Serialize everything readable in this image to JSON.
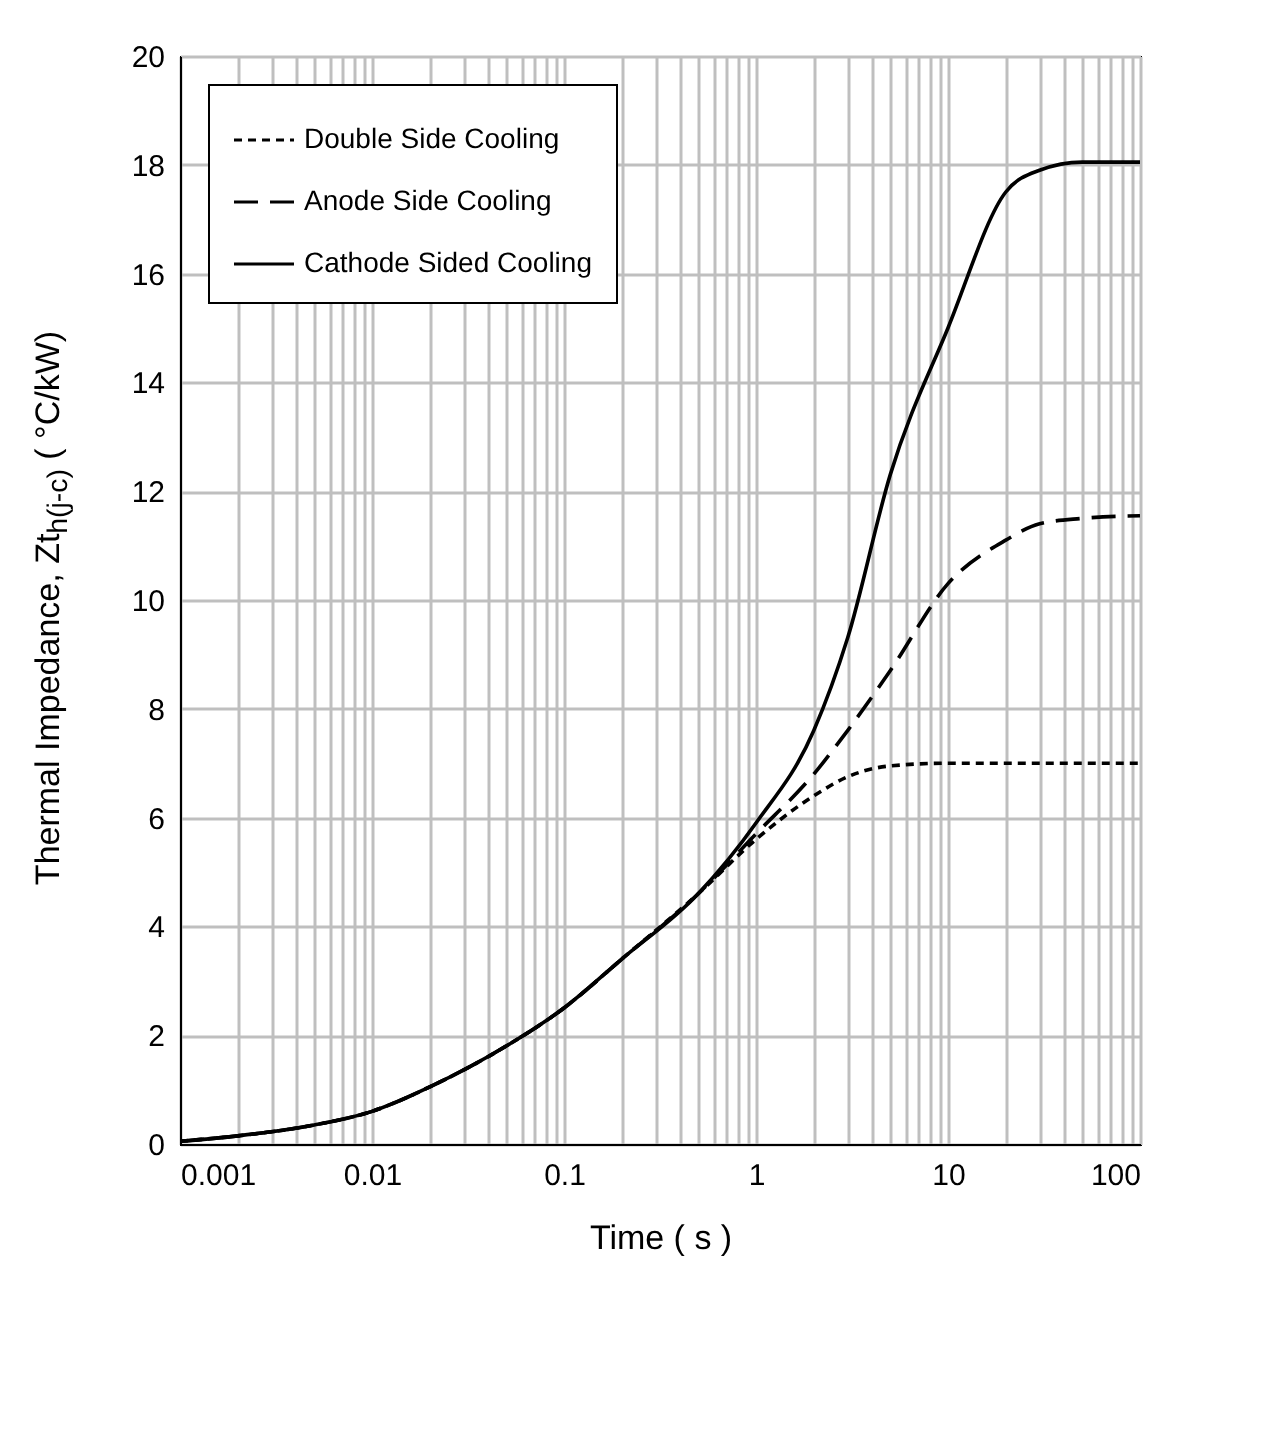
{
  "chart_data": {
    "type": "line",
    "xlabel": "Time ( s )",
    "ylabel": "Thermal Impedance, Zt$_{h(j-c)}$ ( °C/kW)",
    "log": "x",
    "grid": true,
    "legend": "top left",
    "xlim": [
      0.001,
      100
    ],
    "ylim": [
      0,
      20
    ],
    "yticks": [
      0,
      2,
      4,
      6,
      8,
      10,
      12,
      14,
      16,
      18,
      20
    ],
    "xticks": [
      0.001,
      {
        "value": 0.002,
        "label": null
      },
      {
        "value": 0.003,
        "label": null
      },
      {
        "value": 0.004,
        "label": null
      },
      {
        "value": 0.005,
        "label": null
      },
      {
        "value": 0.006,
        "label": null
      },
      {
        "value": 0.007,
        "label": null
      },
      {
        "value": 0.008,
        "label": null
      },
      {
        "value": 0.009,
        "label": null
      },
      0.01,
      {
        "value": 0.02,
        "label": null
      },
      {
        "value": 0.03,
        "label": null
      },
      {
        "value": 0.04,
        "label": null
      },
      {
        "value": 0.05,
        "label": null
      },
      {
        "value": 0.06,
        "label": null
      },
      {
        "value": 0.07,
        "label": null
      },
      {
        "value": 0.08,
        "label": null
      },
      {
        "value": 0.09,
        "label": null
      },
      0.1,
      {
        "value": 0.2,
        "label": null
      },
      {
        "value": 0.3,
        "label": null
      },
      {
        "value": 0.4,
        "label": null
      },
      {
        "value": 0.5,
        "label": null
      },
      {
        "value": 0.6,
        "label": null
      },
      {
        "value": 0.7,
        "label": null
      },
      {
        "value": 0.8,
        "label": null
      },
      {
        "value": 0.9,
        "label": null
      },
      1,
      {
        "value": 2,
        "label": null
      },
      {
        "value": 3,
        "label": null
      },
      {
        "value": 4,
        "label": null
      },
      {
        "value": 5,
        "label": null
      },
      {
        "value": 6,
        "label": null
      },
      {
        "value": 7,
        "label": null
      },
      {
        "value": 8,
        "label": null
      },
      {
        "value": 9,
        "label": null
      },
      10,
      {
        "value": 20,
        "label": null
      },
      {
        "value": 30,
        "label": null
      },
      {
        "value": 40,
        "label": null
      },
      {
        "value": 50,
        "label": null
      },
      {
        "value": 60,
        "label": null
      },
      {
        "value": 70,
        "label": null
      },
      {
        "value": 80,
        "label": null
      },
      {
        "value": 90,
        "label": null
      },
      100
    ],
    "x": [
      0.001,
      0.002,
      0.005,
      0.01,
      0.02,
      0.05,
      0.1,
      0.2,
      0.5,
      1,
      2,
      3,
      5,
      10,
      20,
      30,
      50,
      100
    ],
    "series": [
      {
        "name": "Double Side Cooling",
        "color": "#000000",
        "line_style": "dotted",
        "values": [
          0.05,
          0.15,
          0.35,
          0.6,
          1.05,
          1.8,
          2.5,
          3.4,
          4.6,
          5.6,
          6.4,
          6.75,
          6.95,
          7.0,
          7.0,
          7.0,
          7.0,
          7.0
        ]
      },
      {
        "name": "Anode Side Cooling",
        "color": "#000000",
        "line_style": "dashed",
        "values": [
          0.05,
          0.15,
          0.35,
          0.6,
          1.05,
          1.8,
          2.5,
          3.4,
          4.6,
          5.7,
          6.8,
          7.6,
          8.7,
          10.3,
          11.1,
          11.4,
          11.5,
          11.55
        ]
      },
      {
        "name": "Cathode Sided Cooling",
        "color": "#000000",
        "line_style": "solid",
        "values": [
          0.05,
          0.15,
          0.35,
          0.6,
          1.05,
          1.8,
          2.5,
          3.4,
          4.6,
          5.9,
          7.6,
          9.3,
          12.3,
          15.0,
          17.5,
          17.9,
          18.05,
          18.05
        ]
      }
    ]
  }
}
